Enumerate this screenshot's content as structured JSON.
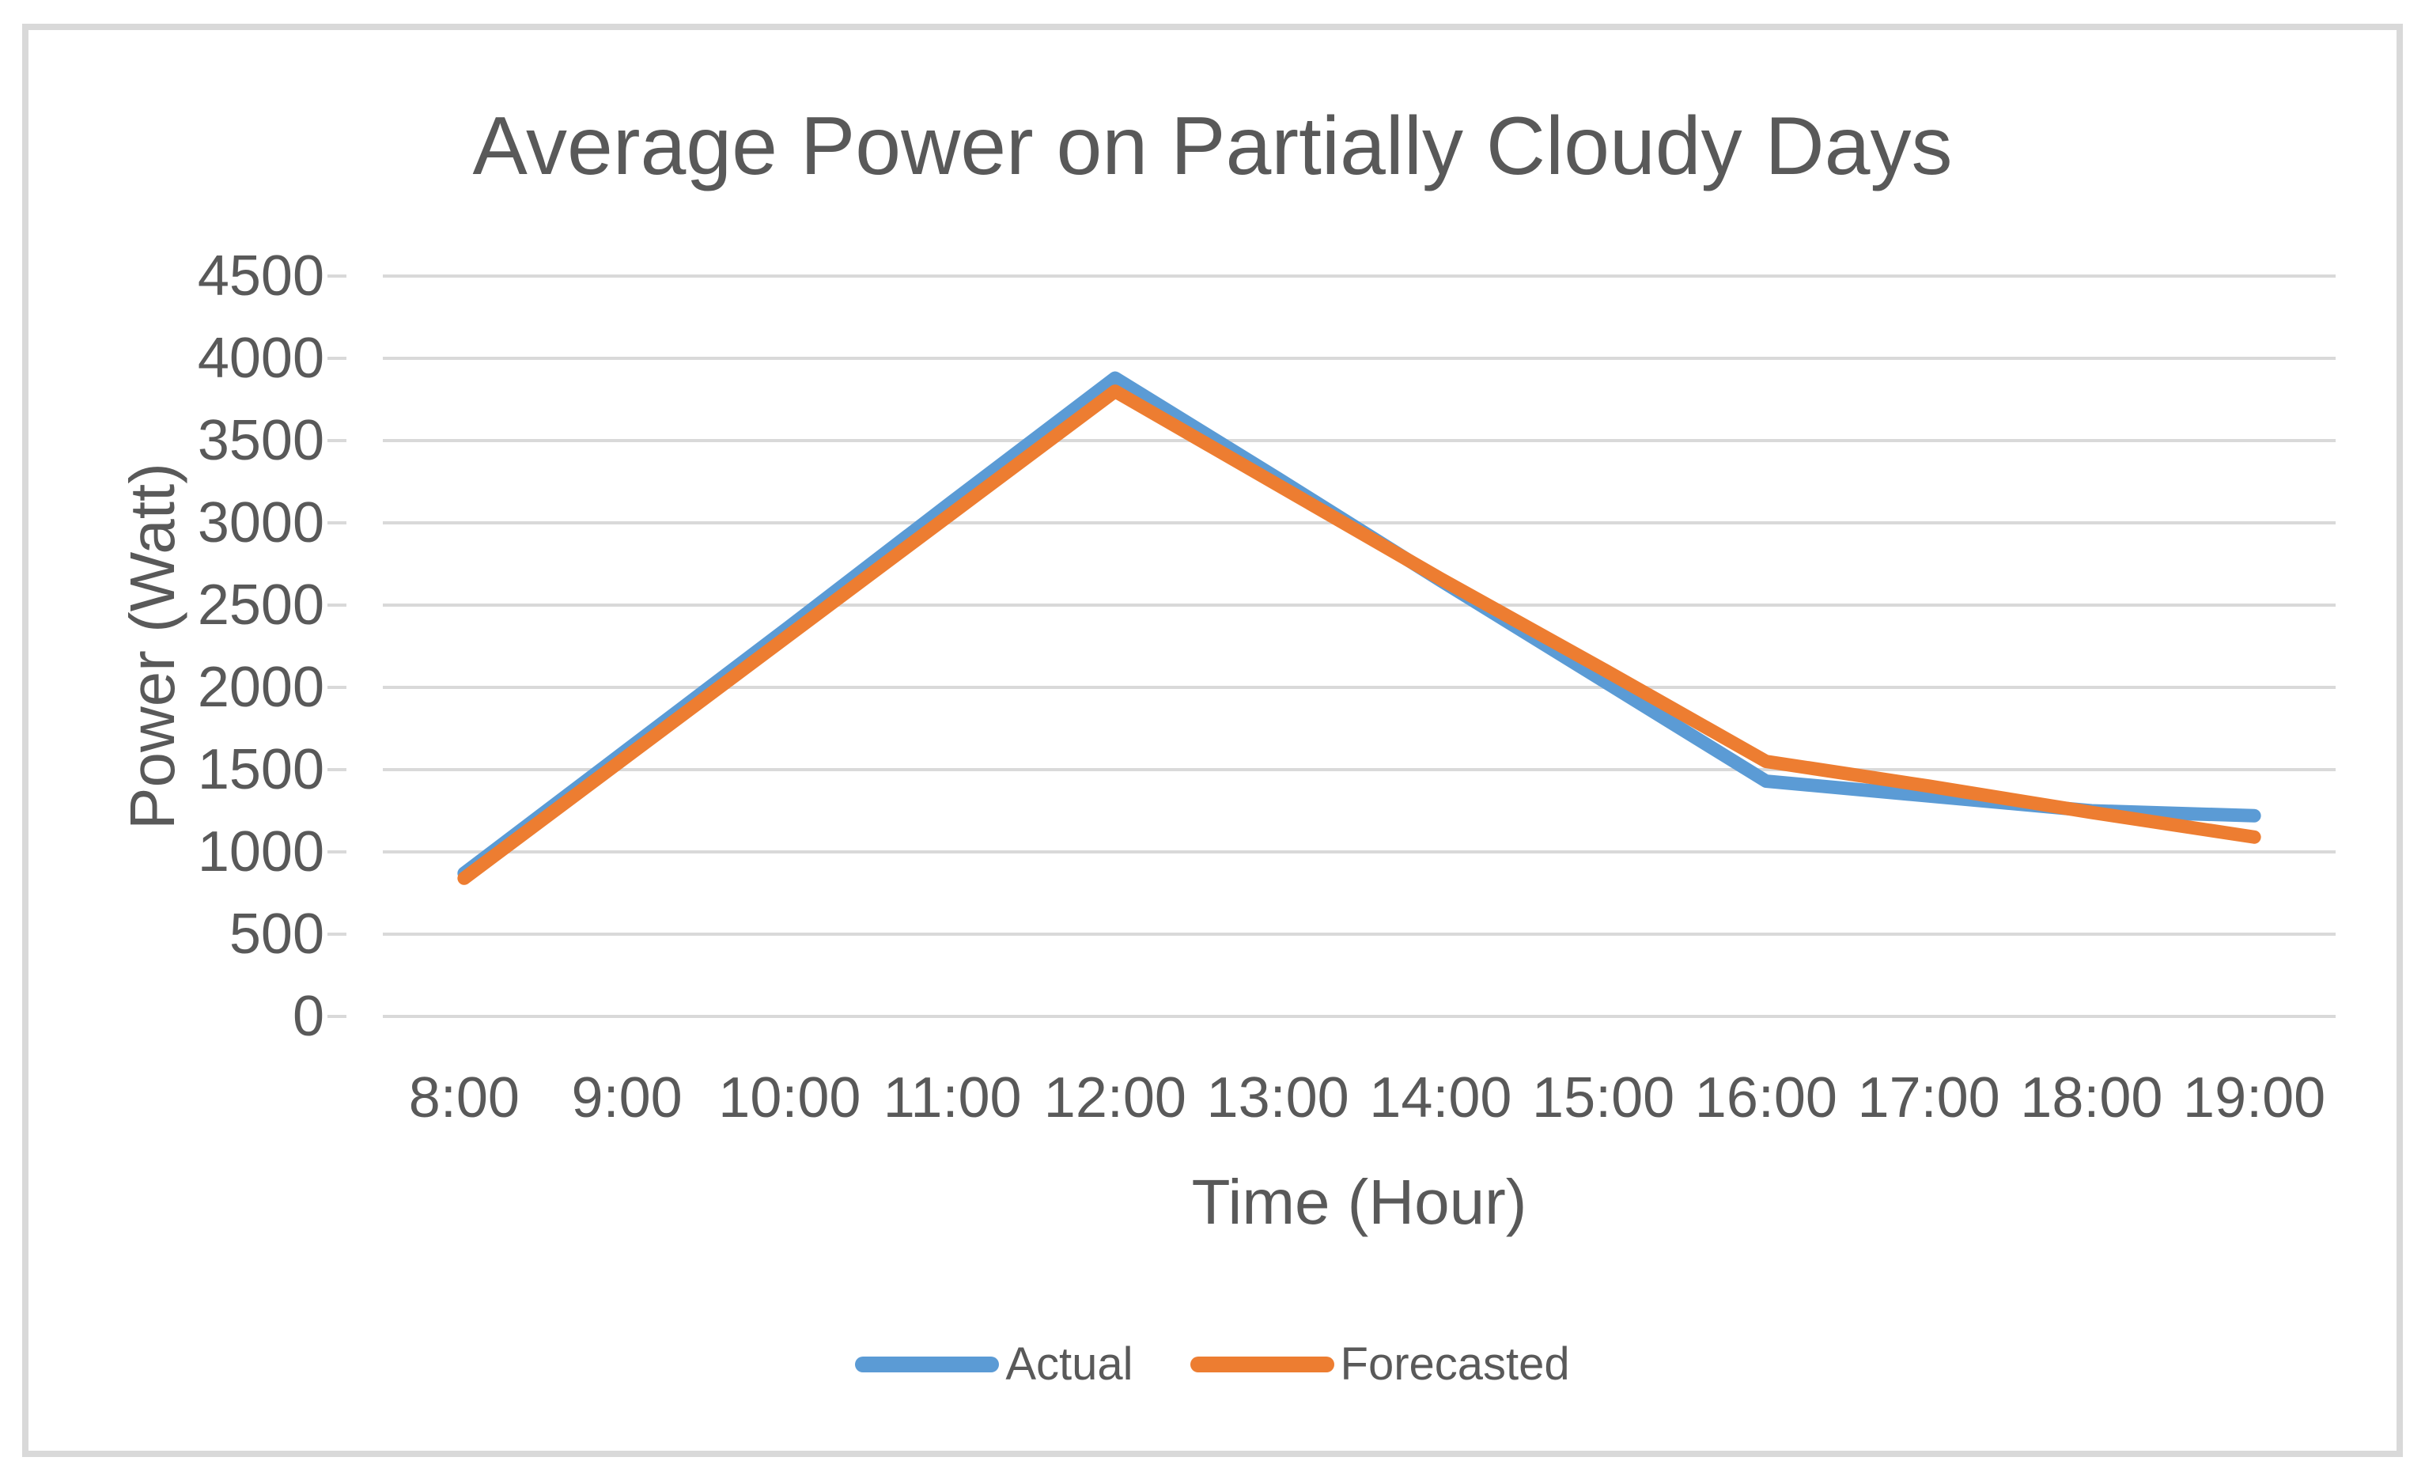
{
  "chart_data": {
    "type": "line",
    "title": "Average Power on Partially Cloudy Days",
    "xlabel": "Time (Hour)",
    "ylabel": "Power (Watt)",
    "categories": [
      "8:00",
      "9:00",
      "10:00",
      "11:00",
      "12:00",
      "13:00",
      "14:00",
      "15:00",
      "16:00",
      "17:00",
      "18:00",
      "19:00"
    ],
    "series": [
      {
        "name": "Actual",
        "color": "#5B9BD5",
        "values": [
          870,
          1620,
          2370,
          3130,
          3880,
          3270,
          2650,
          2040,
          1430,
          1340,
          1250,
          1220
        ]
      },
      {
        "name": "Forecasted",
        "color": "#ED7D31",
        "values": [
          840,
          1580,
          2320,
          3060,
          3800,
          3230,
          2660,
          2110,
          1550,
          1400,
          1240,
          1090
        ]
      }
    ],
    "ylim": [
      0,
      4500
    ],
    "ytick_interval": 500,
    "yticks": [
      4500,
      4000,
      3500,
      3000,
      2500,
      2000,
      1500,
      1000,
      500,
      0
    ],
    "grid": true,
    "legend_position": "bottom",
    "colors": {
      "text": "#595959",
      "gridline": "#D9D9D9",
      "frame_border": "#D9D9D9",
      "background": "#FFFFFF"
    }
  }
}
